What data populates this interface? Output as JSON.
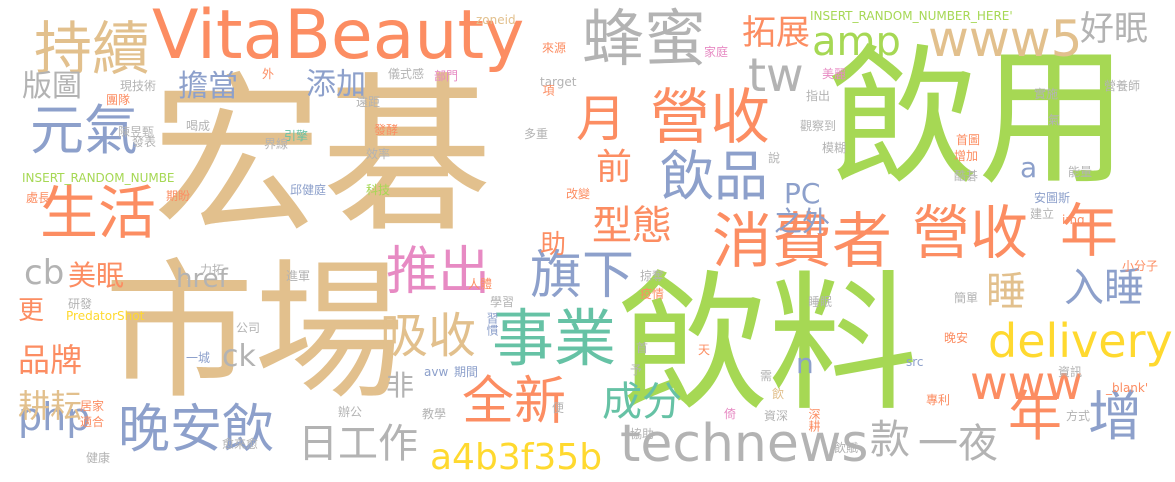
{
  "words": [
    {
      "text": "宏碁",
      "color": "#e2c08d"
    },
    {
      "text": "飲用",
      "color": "#a6d854"
    },
    {
      "text": "市場",
      "color": "#e2c08d"
    },
    {
      "text": "飲料",
      "color": "#a6d854"
    },
    {
      "text": "VitaBeauty",
      "color": "#fc8d62"
    },
    {
      "text": "蜂蜜",
      "color": "#b3b3b3"
    },
    {
      "text": "持續",
      "color": "#e2c08d"
    },
    {
      "text": "www5",
      "color": "#e2c08d"
    },
    {
      "text": "事業",
      "color": "#66c2a5"
    },
    {
      "text": "消費者",
      "color": "#fc8d62"
    },
    {
      "text": "營收",
      "color": "#fc8d62"
    },
    {
      "text": "營收",
      "color": "#fc8d62"
    },
    {
      "text": "月",
      "color": "#fc8d62"
    },
    {
      "text": "飲品",
      "color": "#8da0cb"
    },
    {
      "text": "年",
      "color": "#fc8d62"
    },
    {
      "text": "年",
      "color": "#fc8d62"
    },
    {
      "text": "增",
      "color": "#8da0cb"
    },
    {
      "text": "生活",
      "color": "#fc8d62"
    },
    {
      "text": "元氣",
      "color": "#8da0cb"
    },
    {
      "text": "全新",
      "color": "#fc8d62"
    },
    {
      "text": "旗下",
      "color": "#8da0cb"
    },
    {
      "text": "推出",
      "color": "#e78ac3"
    },
    {
      "text": "晚安飲",
      "color": "#8da0cb"
    },
    {
      "text": "technews",
      "color": "#b3b3b3"
    },
    {
      "text": "www",
      "color": "#fc8d62"
    },
    {
      "text": "delivery",
      "color": "#ffd92f"
    },
    {
      "text": "a4b3f35b",
      "color": "#ffd92f"
    },
    {
      "text": "吸收",
      "color": "#e2c08d"
    },
    {
      "text": "成分",
      "color": "#66c2a5"
    },
    {
      "text": "入睡",
      "color": "#8da0cb"
    },
    {
      "text": "amp",
      "color": "#a6d854"
    },
    {
      "text": "tw",
      "color": "#b3b3b3"
    },
    {
      "text": "php",
      "color": "#8da0cb"
    },
    {
      "text": "日工作",
      "color": "#b3b3b3"
    },
    {
      "text": "款",
      "color": "#b3b3b3"
    },
    {
      "text": "一夜",
      "color": "#b3b3b3"
    },
    {
      "text": "型態",
      "color": "#fc8d62"
    },
    {
      "text": "前",
      "color": "#fc8d62"
    },
    {
      "text": "拓展",
      "color": "#fc8d62"
    },
    {
      "text": "好眠",
      "color": "#b3b3b3"
    },
    {
      "text": "睡",
      "color": "#e2c08d"
    },
    {
      "text": "cb",
      "color": "#b3b3b3"
    },
    {
      "text": "擔當",
      "color": "#8da0cb"
    },
    {
      "text": "添加",
      "color": "#8da0cb"
    },
    {
      "text": "版圖",
      "color": "#b3b3b3"
    },
    {
      "text": "PC",
      "color": "#8da0cb"
    },
    {
      "text": "之外",
      "color": "#8da0cb"
    },
    {
      "text": "a",
      "color": "#8da0cb"
    },
    {
      "text": "助",
      "color": "#fc8d62"
    },
    {
      "text": "美眠",
      "color": "#fc8d62"
    },
    {
      "text": "href",
      "color": "#b3b3b3"
    },
    {
      "text": "更",
      "color": "#fc8d62"
    },
    {
      "text": "品牌",
      "color": "#fc8d62"
    },
    {
      "text": "耕耘",
      "color": "#e2c08d"
    },
    {
      "text": "ck",
      "color": "#b3b3b3"
    },
    {
      "text": "非",
      "color": "#b3b3b3"
    },
    {
      "text": "n",
      "color": "#8da0cb"
    },
    {
      "text": "INSERT_RANDOM_NUMBER_HERE'",
      "color": "#a6d854"
    },
    {
      "text": "INSERT_RANDOM_NUMBE",
      "color": "#a6d854"
    },
    {
      "text": "zoneid",
      "color": "#e2c08d"
    },
    {
      "text": "來源",
      "color": "#fc8d62"
    },
    {
      "text": "家庭",
      "color": "#e78ac3"
    },
    {
      "text": "部門",
      "color": "#e78ac3"
    },
    {
      "text": "target",
      "color": "#b3b3b3"
    },
    {
      "text": "儀式感",
      "color": "#b3b3b3"
    },
    {
      "text": "外",
      "color": "#fc8d62"
    },
    {
      "text": "項",
      "color": "#fc8d62"
    },
    {
      "text": "現",
      "color": "#b3b3b3"
    },
    {
      "text": "技術",
      "color": "#b3b3b3"
    },
    {
      "text": "團隊",
      "color": "#fc8d62"
    },
    {
      "text": "陳昱甄",
      "color": "#b3b3b3"
    },
    {
      "text": "遠距",
      "color": "#b3b3b3"
    },
    {
      "text": "美麗",
      "color": "#e78ac3"
    },
    {
      "text": "營養師",
      "color": "#b3b3b3"
    },
    {
      "text": "實施",
      "color": "#b3b3b3"
    },
    {
      "text": "指出",
      "color": "#b3b3b3"
    },
    {
      "text": "氣",
      "color": "#b3b3b3"
    },
    {
      "text": "喝成",
      "color": "#b3b3b3"
    },
    {
      "text": "引擎",
      "color": "#66c2a5"
    },
    {
      "text": "發酵",
      "color": "#fc8d62"
    },
    {
      "text": "多重",
      "color": "#b3b3b3"
    },
    {
      "text": "觀察到",
      "color": "#b3b3b3"
    },
    {
      "text": "模糊",
      "color": "#b3b3b3"
    },
    {
      "text": "首圖",
      "color": "#fc8d62"
    },
    {
      "text": "發表",
      "color": "#b3b3b3"
    },
    {
      "text": "界線",
      "color": "#b3b3b3"
    },
    {
      "text": "效率",
      "color": "#b3b3b3"
    },
    {
      "text": "說",
      "color": "#b3b3b3"
    },
    {
      "text": "增加",
      "color": "#fc8d62"
    },
    {
      "text": "酷碁",
      "color": "#b3b3b3"
    },
    {
      "text": "能量",
      "color": "#b3b3b3"
    },
    {
      "text": "安圖斯",
      "color": "#8da0cb"
    },
    {
      "text": "邱健庭",
      "color": "#8da0cb"
    },
    {
      "text": "科技",
      "color": "#a6d854"
    },
    {
      "text": "改變",
      "color": "#fc8d62"
    },
    {
      "text": "處長",
      "color": "#fc8d62"
    },
    {
      "text": "期盼",
      "color": "#fc8d62"
    },
    {
      "text": "建立",
      "color": "#b3b3b3"
    },
    {
      "text": "img",
      "color": "#fc8d62"
    },
    {
      "text": "力拓",
      "color": "#b3b3b3"
    },
    {
      "text": "掠奪",
      "color": "#b3b3b3"
    },
    {
      "text": "人體",
      "color": "#fc8d62"
    },
    {
      "text": "小分子",
      "color": "#fc8d62"
    },
    {
      "text": "進軍",
      "color": "#b3b3b3"
    },
    {
      "text": "研發",
      "color": "#b3b3b3"
    },
    {
      "text": "PredatorShot",
      "color": "#ffd92f"
    },
    {
      "text": "學習",
      "color": "#b3b3b3"
    },
    {
      "text": "習慣",
      "color": "#8da0cb"
    },
    {
      "text": "疫情",
      "color": "#fc8d62"
    },
    {
      "text": "睡眠",
      "color": "#b3b3b3"
    },
    {
      "text": "簡單",
      "color": "#b3b3b3"
    },
    {
      "text": "晚安",
      "color": "#fc8d62"
    },
    {
      "text": "公司",
      "color": "#b3b3b3"
    },
    {
      "text": "一城",
      "color": "#8da0cb"
    },
    {
      "text": "首",
      "color": "#b3b3b3"
    },
    {
      "text": "天",
      "color": "#fc8d62"
    },
    {
      "text": "予",
      "color": "#b3b3b3"
    },
    {
      "text": "需",
      "color": "#b3b3b3"
    },
    {
      "text": "src",
      "color": "#8da0cb"
    },
    {
      "text": "資訊",
      "color": "#b3b3b3"
    },
    {
      "text": "avw",
      "color": "#8da0cb"
    },
    {
      "text": "期間",
      "color": "#8da0cb"
    },
    {
      "text": "_blank'",
      "color": "#fc8d62"
    },
    {
      "text": "居家",
      "color": "#fc8d62"
    },
    {
      "text": "適合",
      "color": "#fc8d62"
    },
    {
      "text": "辦公",
      "color": "#b3b3b3"
    },
    {
      "text": "教學",
      "color": "#b3b3b3"
    },
    {
      "text": "便",
      "color": "#b3b3b3"
    },
    {
      "text": "飲",
      "color": "#e2c08d"
    },
    {
      "text": "倚",
      "color": "#e78ac3"
    },
    {
      "text": "資深",
      "color": "#b3b3b3"
    },
    {
      "text": "深耕",
      "color": "#fc8d62"
    },
    {
      "text": "專利",
      "color": "#fc8d62"
    },
    {
      "text": "方式",
      "color": "#b3b3b3"
    },
    {
      "text": "協助",
      "color": "#b3b3b3"
    },
    {
      "text": "飲賦",
      "color": "#b3b3b3"
    },
    {
      "text": "愈來愈",
      "color": "#b3b3b3"
    },
    {
      "text": "健康",
      "color": "#b3b3b3"
    }
  ]
}
